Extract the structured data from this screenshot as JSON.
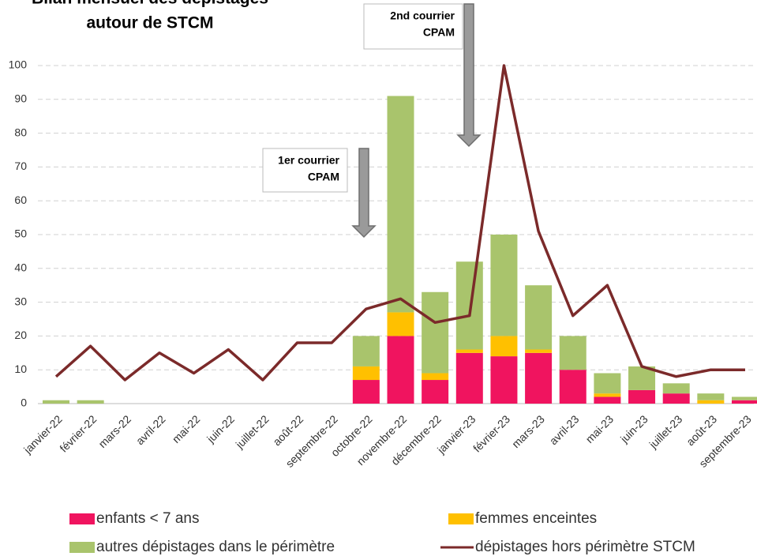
{
  "chart_data": {
    "type": "bar",
    "title": [
      "Bilan mensuel des dépistages",
      "autour de STCM"
    ],
    "categories": [
      "janvier-22",
      "février-22",
      "mars-22",
      "avril-22",
      "mai-22",
      "juin-22",
      "juillet-22",
      "août-22",
      "septembre-22",
      "octobre-22",
      "novembre-22",
      "décembre-22",
      "janvier-23",
      "février-23",
      "mars-23",
      "avril-23",
      "mai-23",
      "juin-23",
      "juillet-23",
      "août-23",
      "septembre-23"
    ],
    "series": [
      {
        "name": "enfants < 7 ans",
        "color": "#f0145f",
        "values": [
          0,
          0,
          0,
          0,
          0,
          0,
          0,
          0,
          0,
          7,
          20,
          7,
          15,
          14,
          15,
          10,
          2,
          4,
          3,
          0,
          1
        ]
      },
      {
        "name": "femmes enceintes",
        "color": "#ffc000",
        "values": [
          0,
          0,
          0,
          0,
          0,
          0,
          0,
          0,
          0,
          4,
          7,
          2,
          1,
          6,
          1,
          0,
          1,
          0,
          0,
          1,
          0
        ]
      },
      {
        "name": "autres dépistages dans le périmètre",
        "color": "#a9c46c",
        "values": [
          1,
          1,
          0,
          0,
          0,
          0,
          0,
          0,
          0,
          9,
          64,
          24,
          26,
          30,
          19,
          10,
          6,
          7,
          3,
          2,
          1
        ]
      },
      {
        "name": "dépistages hors périmètre STCM",
        "color": "#7b2a2a",
        "type": "line",
        "values": [
          8,
          17,
          7,
          15,
          9,
          16,
          7,
          18,
          18,
          28,
          31,
          24,
          26,
          100,
          51,
          26,
          35,
          11,
          8,
          10,
          10
        ]
      }
    ],
    "ylim": [
      0,
      100
    ],
    "yticks": [
      0,
      10,
      20,
      30,
      40,
      50,
      60,
      70,
      80,
      90,
      100
    ],
    "grid": true,
    "annotations": [
      {
        "lines": [
          "1er courrier",
          "CPAM"
        ]
      },
      {
        "lines": [
          "2nd courrier",
          "CPAM"
        ]
      }
    ]
  }
}
